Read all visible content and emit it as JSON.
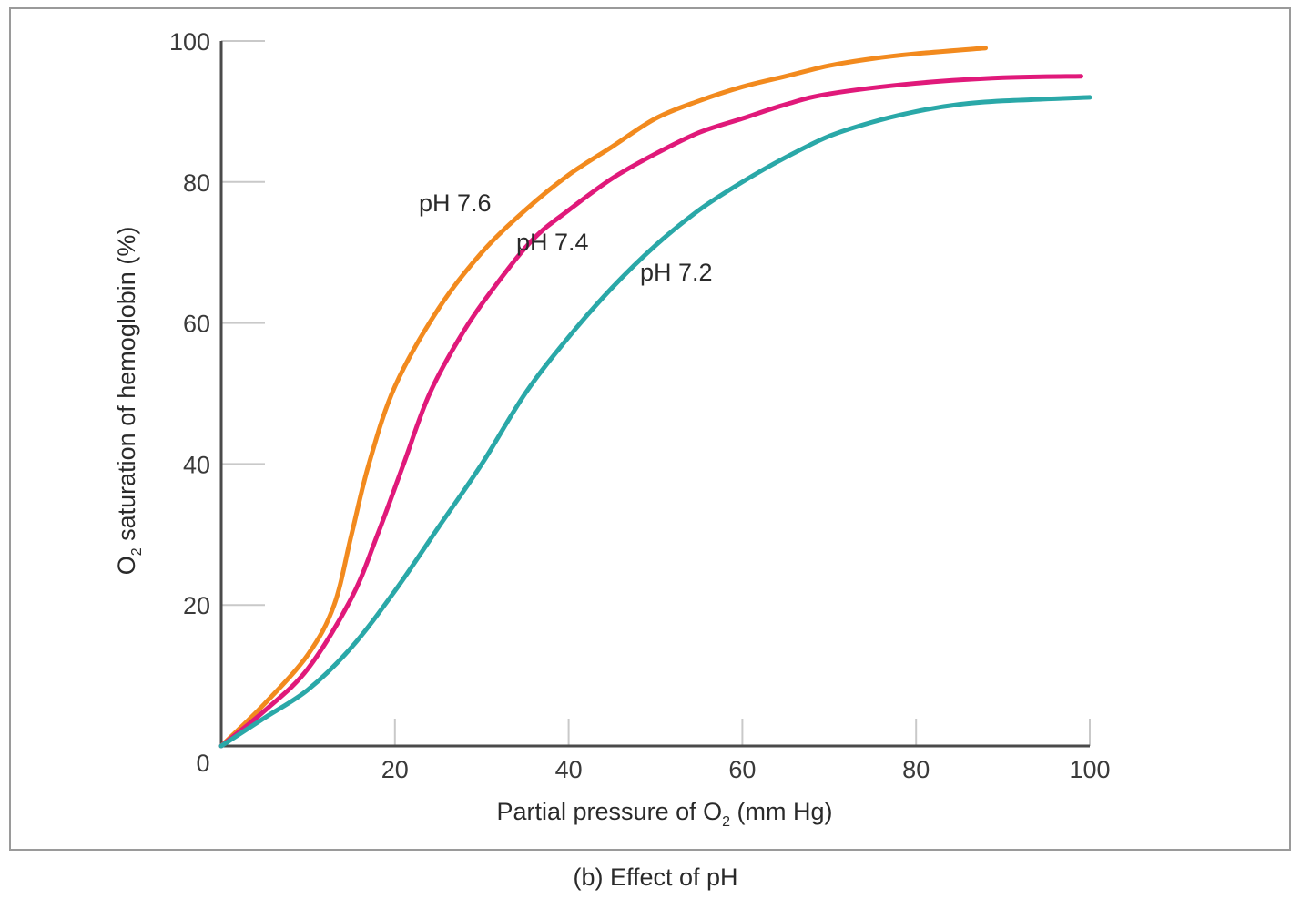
{
  "caption": "(b) Effect of pH",
  "chart_data": {
    "type": "line",
    "title": "",
    "xlabel": {
      "main": "Partial pressure of O",
      "sub": "2",
      "tail": " (mm Hg)"
    },
    "ylabel": {
      "main": "O",
      "sub": "2",
      "tail": " saturation of hemoglobin (%)"
    },
    "xlim": [
      0,
      100
    ],
    "ylim": [
      0,
      100
    ],
    "x_ticks": [
      0,
      20,
      40,
      60,
      80,
      100
    ],
    "y_ticks": [
      20,
      40,
      60,
      80,
      100
    ],
    "origin_label": "0",
    "grid": false,
    "series": [
      {
        "name": "pH 7.6",
        "color": "#f28a1e",
        "points": [
          [
            0,
            0
          ],
          [
            5,
            6
          ],
          [
            10,
            13
          ],
          [
            13,
            20
          ],
          [
            15,
            30
          ],
          [
            17,
            40
          ],
          [
            20,
            51
          ],
          [
            25,
            62
          ],
          [
            30,
            70
          ],
          [
            35,
            76
          ],
          [
            40,
            81
          ],
          [
            45,
            85
          ],
          [
            50,
            89
          ],
          [
            55,
            91.5
          ],
          [
            60,
            93.5
          ],
          [
            65,
            95
          ],
          [
            70,
            96.5
          ],
          [
            75,
            97.5
          ],
          [
            80,
            98.2
          ],
          [
            88,
            99
          ]
        ]
      },
      {
        "name": "pH 7.4",
        "color": "#e0197a",
        "points": [
          [
            0,
            0
          ],
          [
            5,
            5
          ],
          [
            10,
            11
          ],
          [
            15,
            21
          ],
          [
            18,
            30
          ],
          [
            21,
            40
          ],
          [
            24,
            50
          ],
          [
            28,
            59
          ],
          [
            32,
            66
          ],
          [
            36,
            72
          ],
          [
            40,
            76
          ],
          [
            45,
            80.5
          ],
          [
            50,
            84
          ],
          [
            55,
            87
          ],
          [
            60,
            89
          ],
          [
            65,
            91
          ],
          [
            70,
            92.5
          ],
          [
            80,
            94
          ],
          [
            90,
            94.8
          ],
          [
            99,
            95
          ]
        ]
      },
      {
        "name": "pH 7.2",
        "color": "#2aa8a8",
        "points": [
          [
            0,
            0
          ],
          [
            5,
            4
          ],
          [
            10,
            8
          ],
          [
            15,
            14
          ],
          [
            20,
            22
          ],
          [
            25,
            31
          ],
          [
            30,
            40
          ],
          [
            35,
            50
          ],
          [
            40,
            58
          ],
          [
            45,
            65
          ],
          [
            50,
            71
          ],
          [
            55,
            76
          ],
          [
            60,
            80
          ],
          [
            65,
            83.5
          ],
          [
            70,
            86.5
          ],
          [
            75,
            88.5
          ],
          [
            80,
            90
          ],
          [
            85,
            91
          ],
          [
            90,
            91.5
          ],
          [
            100,
            92
          ]
        ]
      }
    ]
  }
}
